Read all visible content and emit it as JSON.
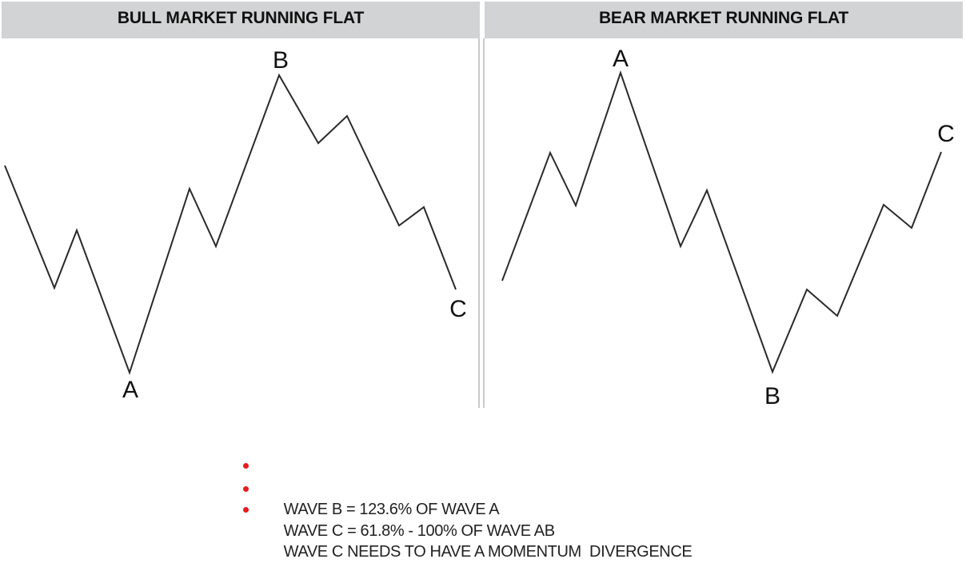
{
  "panels": {
    "left": {
      "title": "BULL MARKET RUNNING FLAT"
    },
    "right": {
      "title": "BEAR MARKET RUNNING FLAT"
    }
  },
  "wave_labels": {
    "left": {
      "a": "A",
      "b": "B",
      "c": "C"
    },
    "right": {
      "a": "A",
      "b": "B",
      "c": "C"
    }
  },
  "notes": [
    "WAVE B = 123.6% OF WAVE A",
    "WAVE C = 61.8% - 100% OF WAVE AB",
    "WAVE C NEEDS TO HAVE A MOMENTUM  DIVERGENCE"
  ],
  "colors": {
    "header_bg": "#d1d3d4",
    "bullet": "#e81c1c",
    "line": "#2a2a2a"
  }
}
